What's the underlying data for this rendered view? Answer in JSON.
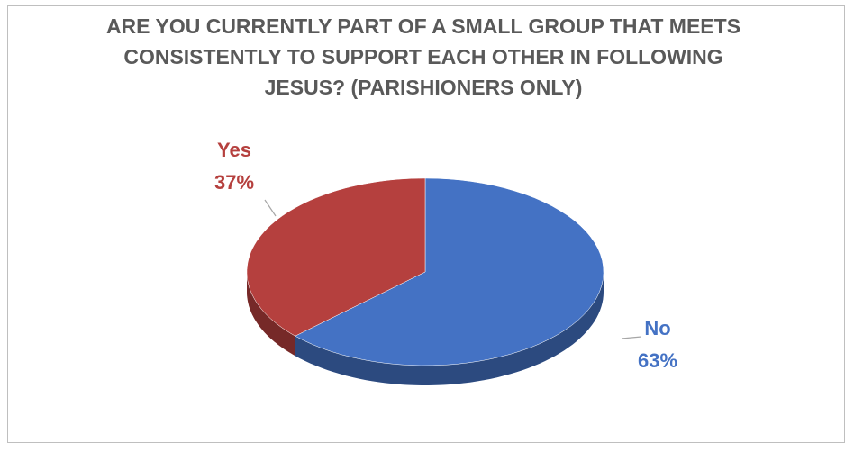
{
  "chart_data": {
    "type": "pie",
    "title": "ARE YOU CURRENTLY PART OF A SMALL GROUP THAT MEETS CONSISTENTLY TO SUPPORT EACH OTHER IN FOLLOWING JESUS? (PARISHIONERS ONLY)",
    "categories": [
      "No",
      "Yes"
    ],
    "values": [
      63,
      37
    ],
    "value_labels": [
      "63%",
      "37%"
    ],
    "colors": [
      "#4472c4",
      "#b5403e"
    ]
  }
}
